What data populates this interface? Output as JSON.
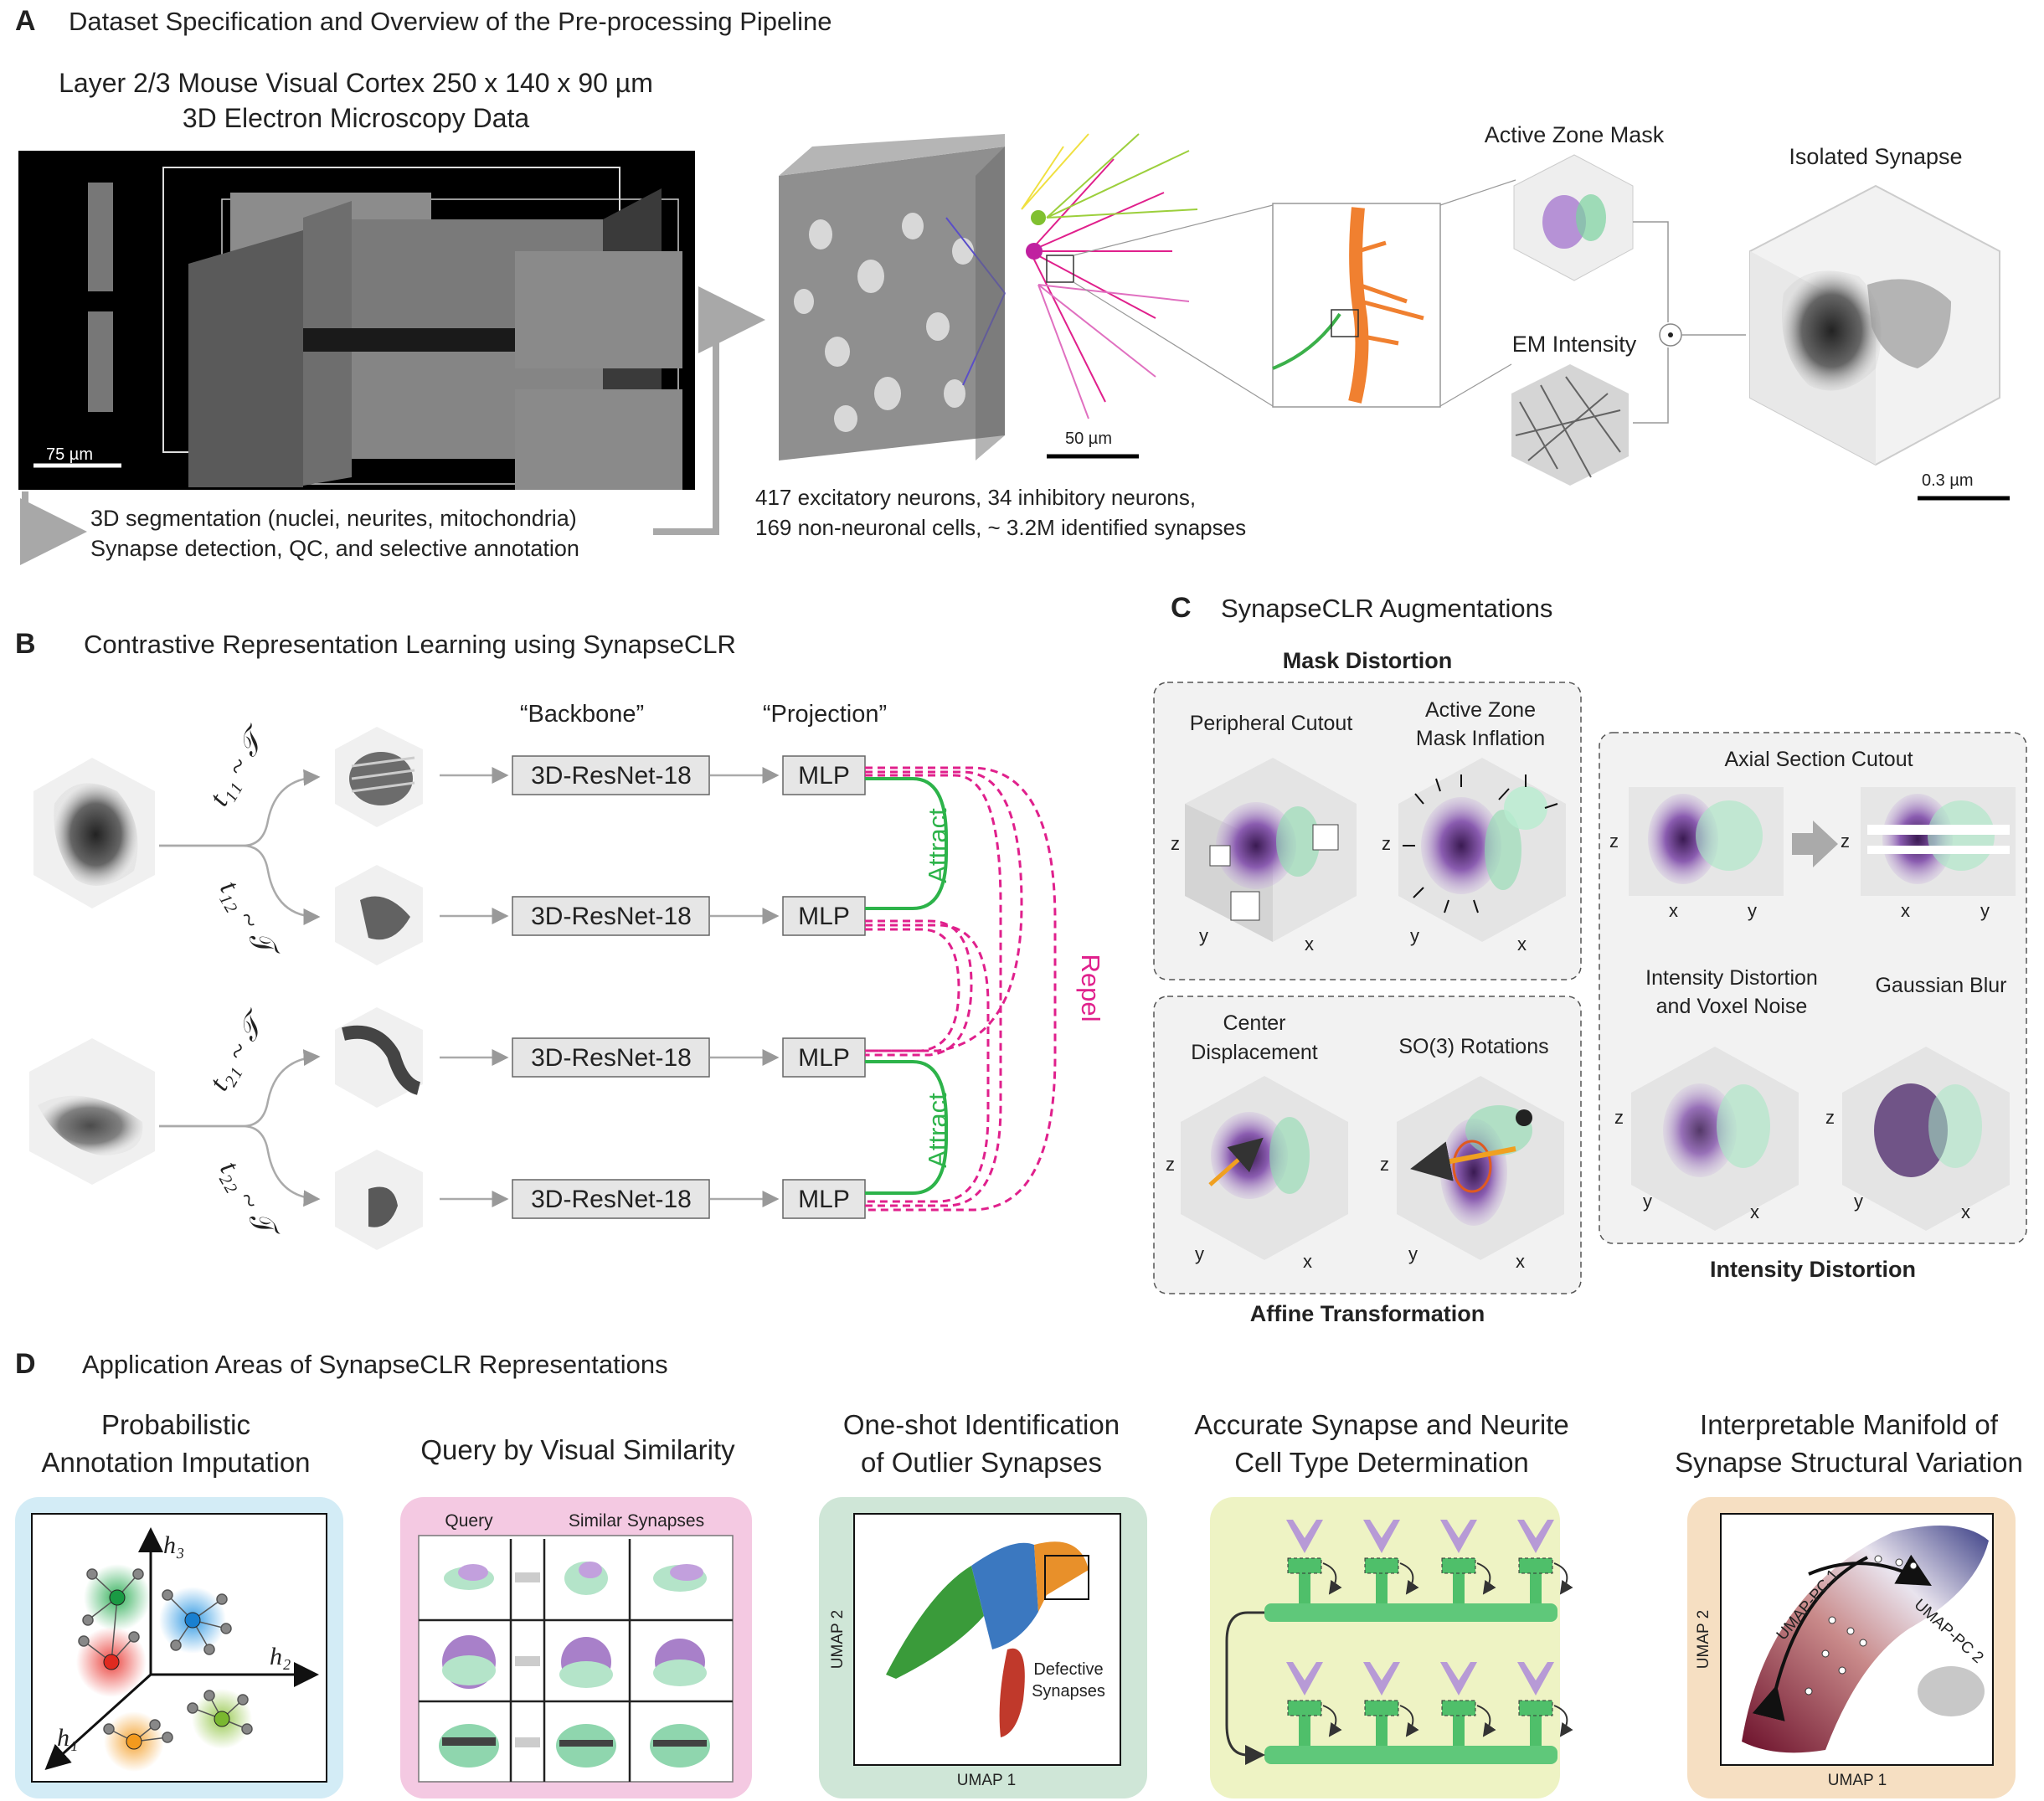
{
  "panelA": {
    "letter": "A",
    "title": "Dataset Specification and Overview of the Pre-processing Pipeline",
    "dataset_line1": "Layer 2/3 Mouse Visual Cortex  250 x 140 x 90 µm",
    "dataset_line2": "3D Electron Microscopy Data",
    "em_scalebar": "75 µm",
    "pipeline_line1": "3D segmentation (nuclei, neurites, mitochondria)",
    "pipeline_line2": "Synapse detection, QC, and selective annotation",
    "volume_scalebar": "50 µm",
    "stats_line1": "417 excitatory neurons, 34 inhibitory neurons,",
    "stats_line2": "169 non-neuronal cells, ~ 3.2M identified synapses",
    "active_zone_label": "Active Zone Mask",
    "em_intensity_label": "EM Intensity",
    "isolated_label": "Isolated Synapse",
    "synapse_scalebar": "0.3  µm"
  },
  "panelB": {
    "letter": "B",
    "title": "Contrastive Representation Learning using SynapseCLR",
    "backbone_header": "“Backbone”",
    "projection_header": "“Projection”",
    "resnet_label": "3D-ResNet-18",
    "mlp_label": "MLP",
    "attract_label": "Attract",
    "repel_label": "Repel",
    "t11": "t₁₁ ~ 𝒯",
    "t12": "t₁₂ ~ 𝒯",
    "t21": "t₂₁ ~ 𝒯",
    "t22": "t₂₂ ~ 𝒯",
    "colors": {
      "attract": "#2db34a",
      "repel": "#e0208c",
      "box": "#e6e6e6"
    }
  },
  "panelC": {
    "letter": "C",
    "title": "SynapseCLR Augmentations",
    "mask_distortion": "Mask Distortion",
    "peripheral_cutout": "Peripheral Cutout",
    "az_inflation_1": "Active Zone",
    "az_inflation_2": "Mask Inflation",
    "center_disp_1": "Center",
    "center_disp_2": "Displacement",
    "so3": "SO(3) Rotations",
    "affine": "Affine Transformation",
    "axial_cutout": "Axial Section Cutout",
    "intensity_noise_1": "Intensity Distortion",
    "intensity_noise_2": "and Voxel Noise",
    "gaussian_blur": "Gaussian Blur",
    "intensity_distortion": "Intensity Distortion",
    "axis_x": "x",
    "axis_y": "y",
    "axis_z": "z"
  },
  "panelD": {
    "letter": "D",
    "title": "Application Areas of SynapseCLR Representations",
    "app1_line1": "Probabilistic",
    "app1_line2": "Annotation Imputation",
    "app2": "Query by Visual Similarity",
    "app3_line1": "One-shot Identification",
    "app3_line2": "of Outlier Synapses",
    "app4_line1": "Accurate Synapse and Neurite",
    "app4_line2": "Cell Type Determination",
    "app5_line1": "Interpretable Manifold of",
    "app5_line2": "Synapse Structural Variation",
    "h1": "h₁",
    "h2": "h₂",
    "h3": "h₃",
    "query": "Query",
    "similar": "Similar Synapses",
    "umap1": "UMAP 1",
    "umap2": "UMAP 2",
    "defective_1": "Defective",
    "defective_2": "Synapses",
    "umap_pc1": "UMAP-PC 1",
    "umap_pc2": "UMAP-PC 2",
    "colors": {
      "blue_bg": "#d3ecf6",
      "pink_bg": "#f4c9e2",
      "green_bg": "#cfe6d7",
      "yellow_bg": "#eef3c4",
      "orange_bg": "#f6dfc2"
    }
  }
}
